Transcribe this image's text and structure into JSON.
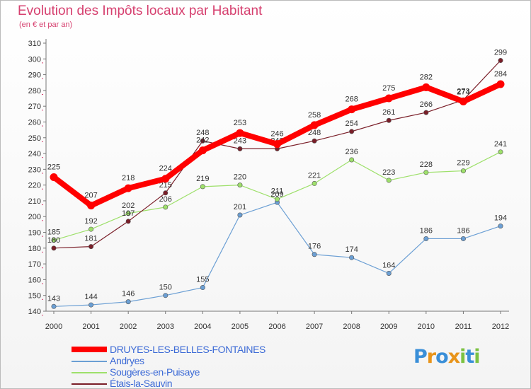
{
  "header": {
    "title": "Evolution des Impôts locaux par Habitant",
    "subtitle": "(en € et par an)"
  },
  "logo": {
    "letters": [
      {
        "ch": "P",
        "color": "#3a8fd8"
      },
      {
        "ch": "r",
        "color": "#e8941a"
      },
      {
        "ch": "o",
        "color": "#3a8fd8"
      },
      {
        "ch": "x",
        "color": "#e8941a"
      },
      {
        "ch": "i",
        "color": "#7cc242"
      },
      {
        "ch": "t",
        "color": "#3a8fd8"
      },
      {
        "ch": "i",
        "color": "#7cc242"
      }
    ]
  },
  "chart_data": {
    "type": "line",
    "title": "Evolution des Impôts locaux par Habitant",
    "subtitle": "(en € et par an)",
    "xlabel": "",
    "ylabel": "",
    "ylim": [
      140,
      310
    ],
    "ytick_step": 10,
    "grid": false,
    "legend_position": "bottom-left",
    "x": [
      "2000",
      "2001",
      "2002",
      "2003",
      "2004",
      "2005",
      "2006",
      "2007",
      "2008",
      "2009",
      "2010",
      "2011",
      "2012"
    ],
    "series": [
      {
        "name": "DRUYES-LES-BELLES-FONTAINES",
        "color": "#ff0000",
        "weight": "heavy",
        "values": [
          225,
          207,
          218,
          224,
          242,
          253,
          246,
          258,
          268,
          275,
          282,
          273,
          284
        ]
      },
      {
        "name": "Andryes",
        "color": "#6b9fd4",
        "weight": "thin",
        "values": [
          143,
          144,
          146,
          150,
          155,
          201,
          209,
          176,
          174,
          164,
          186,
          186,
          194
        ]
      },
      {
        "name": "Sougères-en-Puisaye",
        "color": "#9ee06b",
        "weight": "thin",
        "values": [
          185,
          192,
          202,
          206,
          219,
          220,
          211,
          221,
          236,
          223,
          228,
          229,
          241
        ]
      },
      {
        "name": "Étais-la-Sauvin",
        "color": "#7a1e28",
        "weight": "thin",
        "values": [
          180,
          181,
          197,
          215,
          248,
          243,
          243,
          248,
          254,
          261,
          266,
          274,
          299
        ]
      }
    ]
  }
}
